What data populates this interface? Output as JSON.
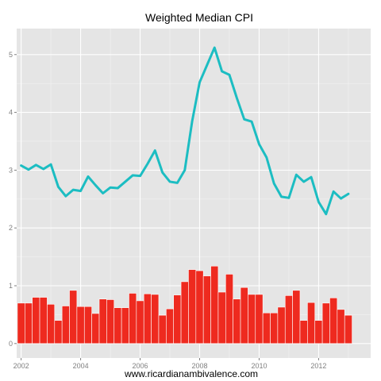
{
  "chart_data": {
    "type": "line",
    "title": "Weighted Median CPI",
    "xlabel": "www.ricardianambivalence.com",
    "ylabel": "",
    "grid": true,
    "legend": "none",
    "xlim": [
      2001.85,
      2013.75
    ],
    "ylim": [
      -0.25,
      5.45
    ],
    "xticks": [
      2002,
      2004,
      2006,
      2008,
      2010,
      2012
    ],
    "xtick_labels": [
      "2002",
      "2004",
      "2006",
      "2008",
      "2010",
      "2012"
    ],
    "yticks": [
      0,
      1,
      2,
      3,
      4,
      5
    ],
    "ytick_labels": [
      "0",
      "1",
      "2",
      "3",
      "4",
      "5"
    ],
    "colors": {
      "panel": "#e5e5e5",
      "grid": "#ffffff",
      "line": "#1cbdc2",
      "bar": "#ee2a1f",
      "bar_outline": "#ffffff"
    },
    "x": [
      2002.0,
      2002.25,
      2002.5,
      2002.75,
      2003.0,
      2003.25,
      2003.5,
      2003.75,
      2004.0,
      2004.25,
      2004.5,
      2004.75,
      2005.0,
      2005.25,
      2005.5,
      2005.75,
      2006.0,
      2006.25,
      2006.5,
      2006.75,
      2007.0,
      2007.25,
      2007.5,
      2007.75,
      2008.0,
      2008.25,
      2008.5,
      2008.75,
      2009.0,
      2009.25,
      2009.5,
      2009.75,
      2010.0,
      2010.25,
      2010.5,
      2010.75,
      2011.0,
      2011.25,
      2011.5,
      2011.75,
      2012.0,
      2012.25,
      2012.5,
      2012.75,
      2013.0
    ],
    "series": [
      {
        "kind": "bar",
        "values": [
          0.7,
          0.7,
          0.8,
          0.8,
          0.68,
          0.4,
          0.65,
          0.92,
          0.64,
          0.64,
          0.52,
          0.77,
          0.76,
          0.62,
          0.62,
          0.87,
          0.74,
          0.86,
          0.85,
          0.49,
          0.6,
          0.84,
          1.07,
          1.28,
          1.26,
          1.17,
          1.34,
          0.89,
          1.2,
          0.77,
          0.97,
          0.85,
          0.85,
          0.53,
          0.53,
          0.63,
          0.83,
          0.92,
          0.4,
          0.71,
          0.4,
          0.7,
          0.79,
          0.59,
          0.49
        ]
      },
      {
        "kind": "line",
        "values": [
          3.08,
          3.01,
          3.09,
          3.02,
          3.1,
          2.71,
          2.55,
          2.66,
          2.64,
          2.89,
          2.74,
          2.6,
          2.7,
          2.69,
          2.8,
          2.91,
          2.9,
          3.11,
          3.34,
          2.96,
          2.8,
          2.78,
          3.0,
          3.85,
          4.52,
          4.82,
          5.12,
          4.71,
          4.65,
          4.25,
          3.88,
          3.84,
          3.45,
          3.22,
          2.77,
          2.54,
          2.52,
          2.92,
          2.8,
          2.88,
          2.45,
          2.24,
          2.63,
          2.51,
          2.59
        ]
      }
    ]
  }
}
